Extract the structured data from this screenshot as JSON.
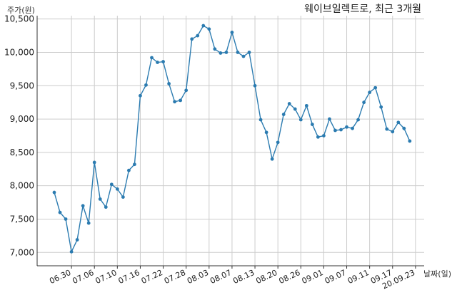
{
  "chart_data": {
    "type": "line",
    "title": "웨이브일렉트로, 최근 3개월",
    "ylabel": "주가(원)",
    "xlabel": "날짜(일)",
    "ylim": [
      6800,
      10550
    ],
    "grid": true,
    "colors": {
      "line": "#2b7bb0",
      "marker": "#2b7bb0"
    },
    "yticks": [
      7000,
      7500,
      8000,
      8500,
      9000,
      9500,
      10000,
      10500
    ],
    "ytick_labels": [
      "7,000",
      "7,500",
      "8,000",
      "8,500",
      "9,000",
      "9,500",
      "10,000",
      "10,500"
    ],
    "xticks": [
      {
        "index": 3,
        "label": "06.30"
      },
      {
        "index": 7,
        "label": "07.06"
      },
      {
        "index": 11,
        "label": "07.10"
      },
      {
        "index": 15,
        "label": "07.16"
      },
      {
        "index": 19,
        "label": "07.22"
      },
      {
        "index": 23,
        "label": "07.28"
      },
      {
        "index": 27,
        "label": "08.03"
      },
      {
        "index": 31,
        "label": "08.07"
      },
      {
        "index": 35,
        "label": "08.13"
      },
      {
        "index": 39,
        "label": "08.20"
      },
      {
        "index": 43,
        "label": "08.26"
      },
      {
        "index": 47,
        "label": "09.01"
      },
      {
        "index": 51,
        "label": "09.07"
      },
      {
        "index": 55,
        "label": "09.11"
      },
      {
        "index": 59,
        "label": "09.17"
      },
      {
        "index": 63,
        "label": "20.09.23"
      }
    ],
    "series": [
      {
        "values": [
          7900,
          7600,
          7500,
          7010,
          7190,
          7700,
          7440,
          8350,
          7800,
          7680,
          8020,
          7950,
          7830,
          8230,
          8320,
          9350,
          9510,
          9920,
          9850,
          9860,
          9530,
          9260,
          9280,
          9430,
          10200,
          10250,
          10400,
          10350,
          10050,
          9990,
          10000,
          10300,
          10000,
          9940,
          10000,
          9500,
          8990,
          8800,
          8400,
          8650,
          9070,
          9230,
          9150,
          8990,
          9200,
          8920,
          8730,
          8750,
          9000,
          8830,
          8840,
          8880,
          8860,
          8990,
          9250,
          9400,
          9470,
          9180,
          8850,
          8810,
          8950,
          8860,
          8670
        ]
      }
    ]
  }
}
